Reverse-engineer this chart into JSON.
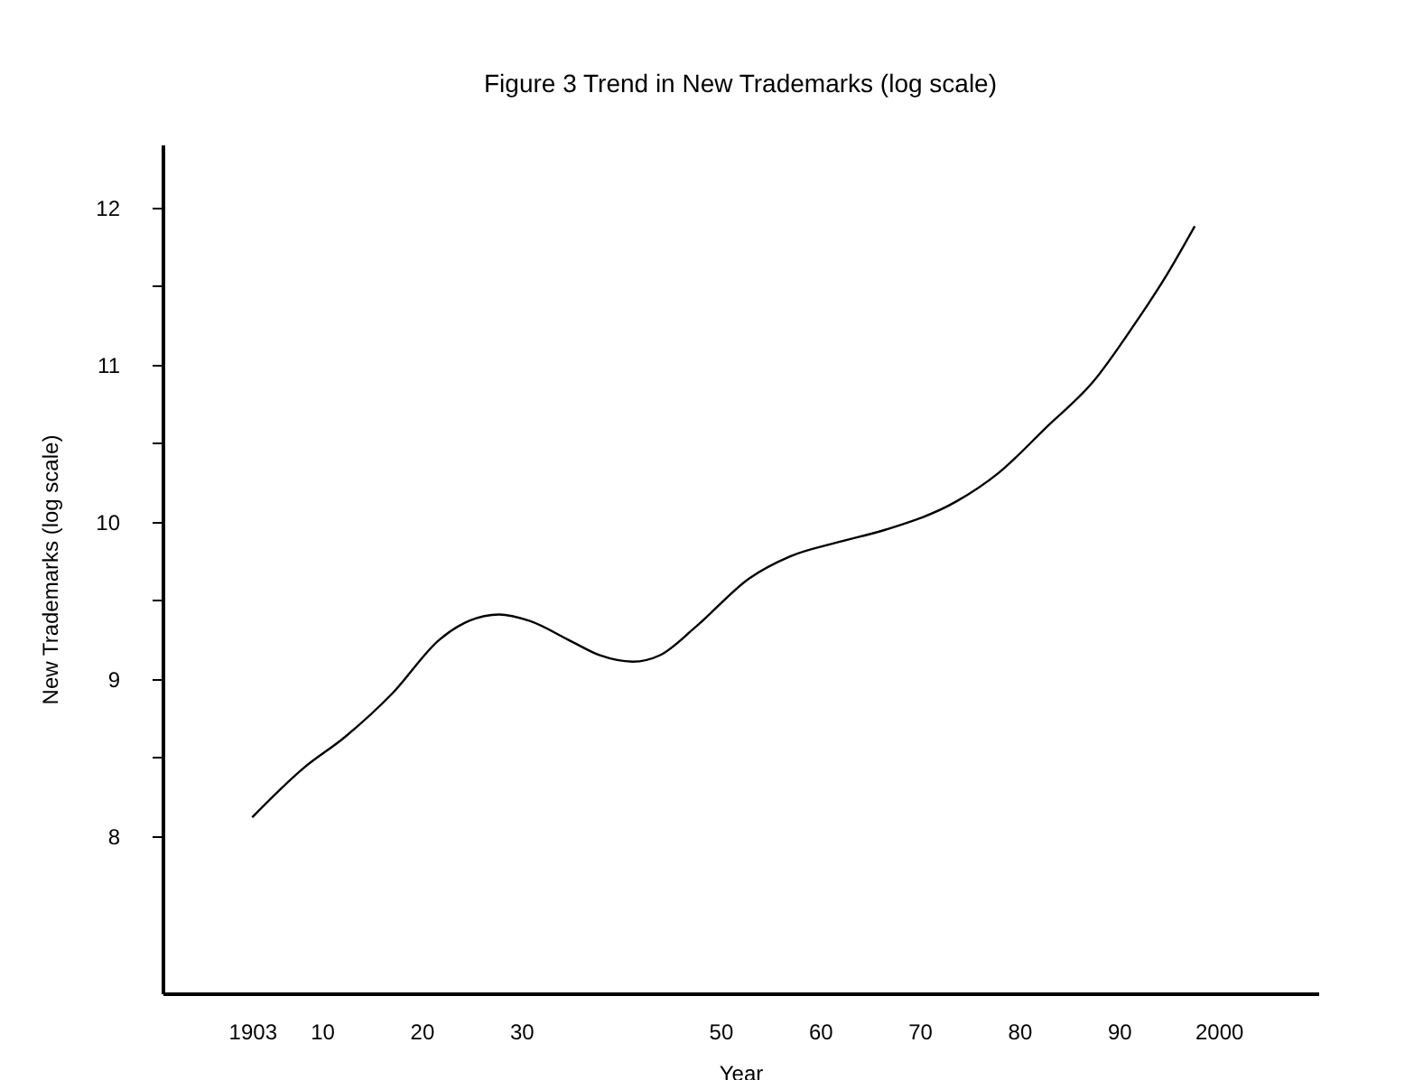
{
  "chart_data": {
    "type": "line",
    "title": "Figure 3      Trend in New Trademarks (log scale)",
    "xlabel": "Year",
    "ylabel": "New Trademarks (log scale)",
    "x": [
      1903,
      1908.1,
      1912.3,
      1917.1,
      1921.8,
      1924.8,
      1927.8,
      1930.8,
      1935,
      1937.9,
      1941.2,
      1943.9,
      1947.5,
      1952.9,
      1957,
      1961.8,
      1966.6,
      1973.7,
      1977.9,
      1982.7,
      1987.4,
      1991.6,
      1994.6,
      1997.6
    ],
    "series": [
      {
        "color": "#000000",
        "values": [
          8.12,
          8.43,
          8.63,
          8.91,
          9.25,
          9.37,
          9.41,
          9.37,
          9.24,
          9.15,
          9.11,
          9.15,
          9.33,
          9.64,
          9.78,
          9.87,
          9.95,
          10.13,
          10.31,
          10.6,
          10.89,
          11.26,
          11.55,
          11.88
        ]
      }
    ],
    "xlim": [
      1894,
      2010
    ],
    "xticks": [
      1903,
      {
        "value": 1910,
        "label": "10"
      },
      {
        "value": 1920,
        "label": "20"
      },
      {
        "value": 1930,
        "label": "30"
      },
      {
        "value": 1950,
        "label": "50"
      },
      {
        "value": 1960,
        "label": "60"
      },
      {
        "value": 1970,
        "label": "70"
      },
      {
        "value": 1980,
        "label": "80"
      },
      {
        "value": 1990,
        "label": "90"
      },
      2000
    ],
    "ylim": [
      7.0,
      12.4
    ],
    "yticks": [
      8,
      {
        "value": 8.5,
        "label": null
      },
      9,
      {
        "value": 9.5,
        "label": null
      },
      10,
      {
        "value": 10.5,
        "label": null
      },
      11,
      {
        "value": 11.5,
        "label": null
      },
      12
    ],
    "grid": false,
    "legend": false,
    "marker": "none",
    "line_style": "solid"
  }
}
